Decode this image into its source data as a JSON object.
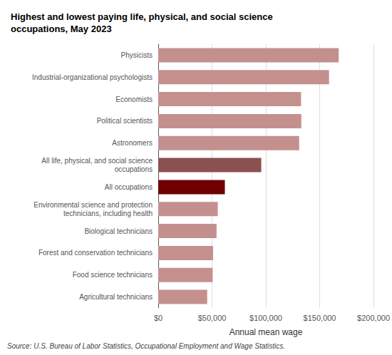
{
  "chart_data": {
    "type": "bar",
    "orientation": "horizontal",
    "title": "Highest and lowest paying life, physical, and social science\noccupations, May 2023",
    "categories": [
      "Physicists",
      "Industrial-organizational psychologists",
      "Economists",
      "Political scientists",
      "Astronomers",
      "All life, physical, and social science\noccupations",
      "All occupations",
      "Environmental science and protection\ntechnicians, including health",
      "Biological technicians",
      "Forest and conservation technicians",
      "Food science technicians",
      "Agricultural technicians"
    ],
    "values": [
      167680,
      158710,
      132700,
      132920,
      130950,
      95710,
      61900,
      55320,
      54190,
      50990,
      50580,
      45490
    ],
    "colors": [
      "#c4908e",
      "#c4908e",
      "#c4908e",
      "#c4908e",
      "#c4908e",
      "#8b5050",
      "#700000",
      "#c4908e",
      "#c4908e",
      "#c4908e",
      "#c4908e",
      "#c4908e"
    ],
    "xlabel": "Annual mean wage",
    "xlim": [
      0,
      200000
    ],
    "xticks": [
      {
        "value": 0,
        "label": "$0"
      },
      {
        "value": 50000,
        "label": "$50,000"
      },
      {
        "value": 100000,
        "label": "$100,000"
      },
      {
        "value": 150000,
        "label": "$150,000"
      },
      {
        "value": 200000,
        "label": "$200,000"
      }
    ],
    "grid": true,
    "annotation": "Source: U.S. Bureau of Labor Statistics, Occupational Employment and Wage Statistics."
  }
}
